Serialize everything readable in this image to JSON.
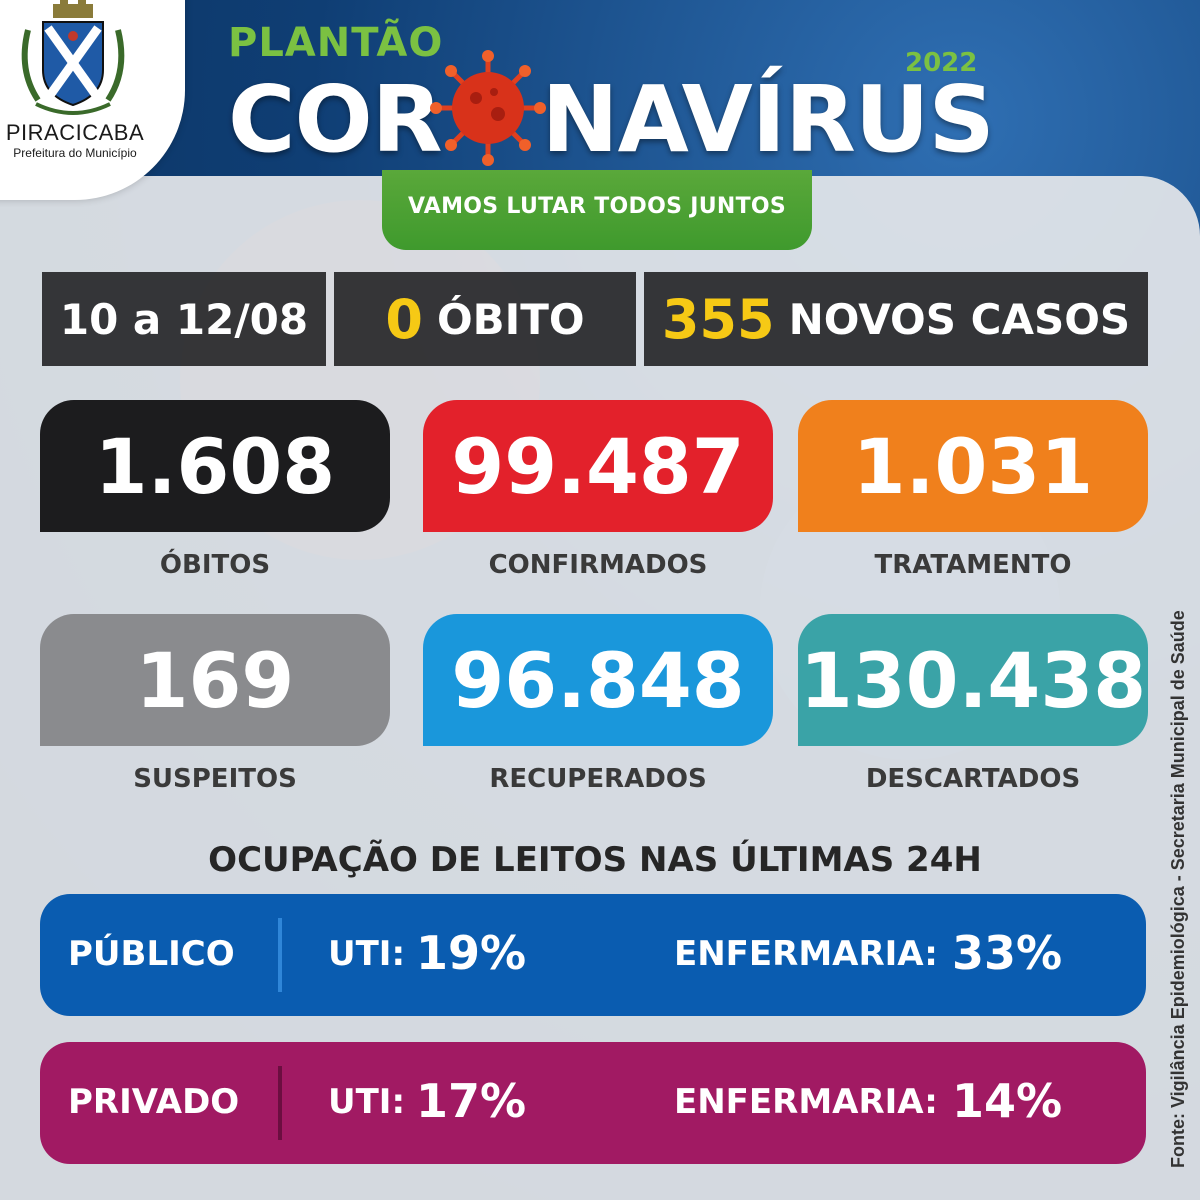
{
  "branding": {
    "city": "PIRACICABA",
    "subtitle": "Prefeitura do Município"
  },
  "header": {
    "kicker": "PLANTÃO",
    "title_left": "COR",
    "title_right": "NAVÍRUS",
    "year": "2022",
    "slogan": "VAMOS LUTAR TODOS JUNTOS"
  },
  "summary": {
    "period": "10 a 12/08",
    "deaths_count": "0",
    "deaths_label": "ÓBITO",
    "new_cases_count": "355",
    "new_cases_label": "NOVOS CASOS"
  },
  "stats": [
    {
      "value": "1.608",
      "label": "ÓBITOS",
      "color": "#1c1c1e"
    },
    {
      "value": "99.487",
      "label": "CONFIRMADOS",
      "color": "#e3212b"
    },
    {
      "value": "1.031",
      "label": "TRATAMENTO",
      "color": "#f0801c"
    },
    {
      "value": "169",
      "label": "SUSPEITOS",
      "color": "#8a8b8e"
    },
    {
      "value": "96.848",
      "label": "RECUPERADOS",
      "color": "#1a97db"
    },
    {
      "value": "130.438",
      "label": "DESCARTADOS",
      "color": "#3aa3a7"
    }
  ],
  "beds": {
    "title": "OCUPAÇÃO DE LEITOS NAS ÚLTIMAS 24H",
    "rows": [
      {
        "name": "PÚBLICO",
        "uti_label": "UTI:",
        "uti_value": "19%",
        "ward_label": "ENFERMARIA:",
        "ward_value": "33%",
        "color": "#0a5cb0",
        "divider": "#2f86d8"
      },
      {
        "name": "PRIVADO",
        "uti_label": "UTI:",
        "uti_value": "17%",
        "ward_label": "ENFERMARIA:",
        "ward_value": "14%",
        "color": "#a11a63",
        "divider": "#6b0e40"
      }
    ]
  },
  "source": "Fonte: Vigilância Epidemiológica - Secretaria Municipal de Saúde"
}
